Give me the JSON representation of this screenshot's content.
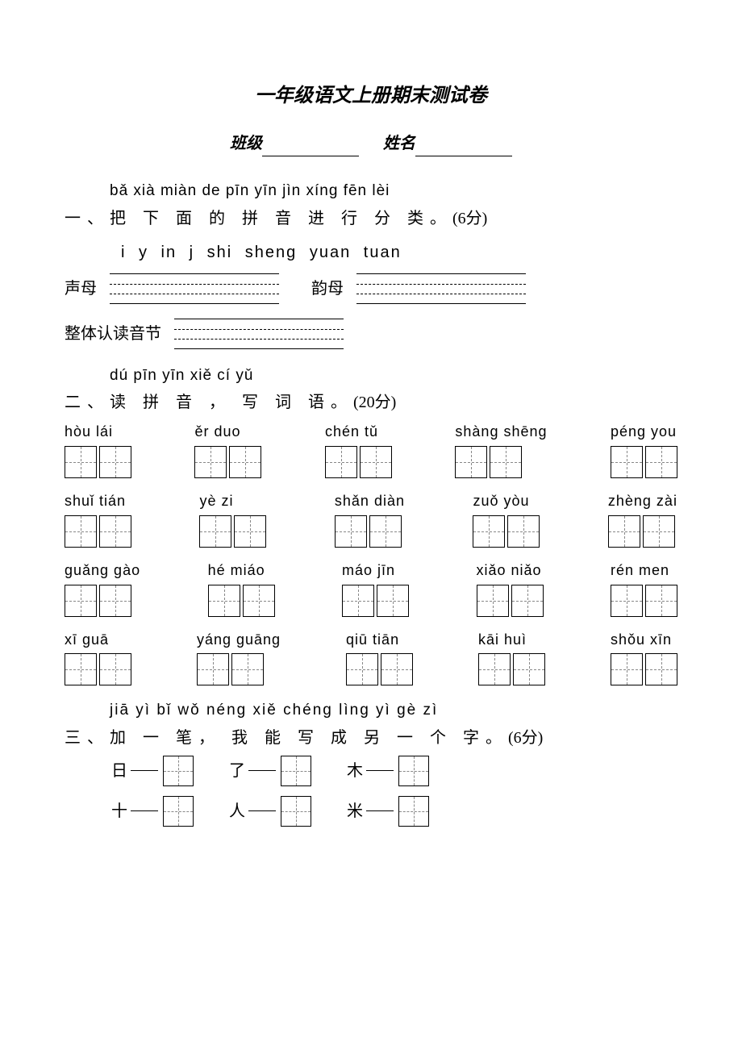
{
  "title": "一年级语文上册期末测试卷",
  "header": {
    "class_label": "班级",
    "name_label": "姓名"
  },
  "q1": {
    "pinyin": "bǎ xià miàn de  pīn yīn  jìn xíng fēn lèi",
    "hanzi_prefix": "一、",
    "hanzi": "把  下  面  的  拼  音  进  行  分  类。",
    "score": "(6分)",
    "items": "i  y  in  j  shi  sheng  yuan  tuan",
    "shengmu_label": "声母",
    "yunmu_label": "韵母",
    "zhengti_label": "整体认读音节"
  },
  "q2": {
    "pinyin": "dú pīn yīn  xiě cí yǔ",
    "hanzi_prefix": "二、",
    "hanzi": "读  拼  音 ， 写  词  语。",
    "score": "(20分)",
    "rows": [
      [
        {
          "py": "hòu  lái"
        },
        {
          "py": "ěr  duo"
        },
        {
          "py": "chén tǔ"
        },
        {
          "py": "shàng shēng"
        },
        {
          "py": "péng you"
        }
      ],
      [
        {
          "py": "shuǐ tián"
        },
        {
          "py": "yè  zi"
        },
        {
          "py": "shǎn diàn"
        },
        {
          "py": "zuǒ  yòu"
        },
        {
          "py": "zhèng zài"
        }
      ],
      [
        {
          "py": "guǎng gào"
        },
        {
          "py": "hé  miáo"
        },
        {
          "py": "máo jīn"
        },
        {
          "py": "xiǎo niǎo"
        },
        {
          "py": "rén men"
        }
      ],
      [
        {
          "py": "xī  guā"
        },
        {
          "py": "yáng guāng"
        },
        {
          "py": "qiū  tiān"
        },
        {
          "py": "kāi  huì"
        },
        {
          "py": "shǒu xīn"
        }
      ]
    ]
  },
  "q3": {
    "pinyin": "jiā yì bǐ  wǒ néng xiě chéng lìng yì gè zì",
    "hanzi_prefix": "三、",
    "hanzi": "加  一  笔， 我  能  写  成  另  一 个  字。",
    "score": "(6分)",
    "rows": [
      [
        "日",
        "了",
        "木"
      ],
      [
        "十",
        "人",
        "米"
      ]
    ]
  }
}
